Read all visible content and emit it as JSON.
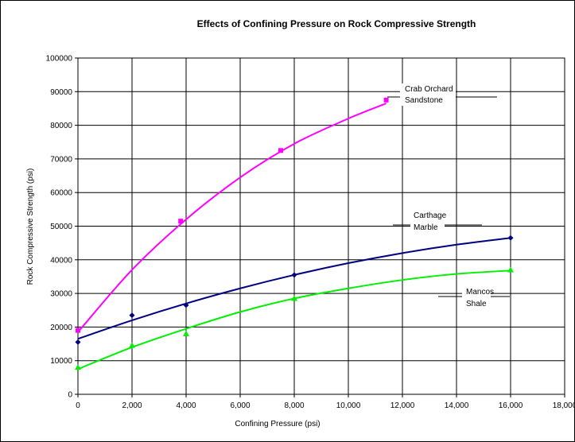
{
  "chart_data": {
    "type": "scatter",
    "title": "Effects of Confining Pressure on Rock Compressive Strength",
    "xlabel": "Confining Pressure (psi)",
    "ylabel": "Rock Compressive Strength (psi)",
    "xlim": [
      0,
      18000
    ],
    "ylim": [
      0,
      100000
    ],
    "x_ticks": [
      "0",
      "2,000",
      "4,000",
      "6,000",
      "8,000",
      "10,000",
      "12,000",
      "14,000",
      "16,000",
      "18,000"
    ],
    "y_ticks": [
      "0",
      "10000",
      "20000",
      "30000",
      "40000",
      "50000",
      "60000",
      "70000",
      "80000",
      "90000",
      "100000"
    ],
    "x_tick_values": [
      0,
      2000,
      4000,
      6000,
      8000,
      10000,
      12000,
      14000,
      16000,
      18000
    ],
    "y_tick_values": [
      0,
      10000,
      20000,
      30000,
      40000,
      50000,
      60000,
      70000,
      80000,
      90000,
      100000
    ],
    "grid": true,
    "legend": "none",
    "series": [
      {
        "label_lines": [
          "Crab Orchard",
          "Sandstone"
        ],
        "color": "#ff00ff",
        "marker": "square",
        "points": [
          [
            0,
            19000
          ],
          [
            3800,
            51500
          ],
          [
            7500,
            72500
          ],
          [
            11400,
            87500
          ]
        ],
        "trend": [
          [
            0,
            18500
          ],
          [
            2000,
            37000
          ],
          [
            4000,
            52000
          ],
          [
            6000,
            64500
          ],
          [
            8000,
            74500
          ],
          [
            10000,
            82000
          ],
          [
            11400,
            86500
          ]
        ]
      },
      {
        "label_lines": [
          "Carthage",
          "Marble"
        ],
        "color": "#000080",
        "marker": "diamond",
        "points": [
          [
            0,
            15500
          ],
          [
            2000,
            23500
          ],
          [
            4000,
            26500
          ],
          [
            8000,
            35500
          ],
          [
            16000,
            46500
          ]
        ],
        "trend": [
          [
            0,
            16500
          ],
          [
            2000,
            22000
          ],
          [
            4000,
            27000
          ],
          [
            6000,
            31500
          ],
          [
            8000,
            35500
          ],
          [
            10000,
            39000
          ],
          [
            12000,
            42000
          ],
          [
            14000,
            44500
          ],
          [
            16000,
            46500
          ]
        ]
      },
      {
        "label_lines": [
          "Mancos",
          "Shale"
        ],
        "color": "#00ee00",
        "marker": "triangle",
        "points": [
          [
            0,
            8000
          ],
          [
            2000,
            14500
          ],
          [
            4000,
            18000
          ],
          [
            8000,
            28500
          ],
          [
            16000,
            37000
          ]
        ],
        "trend": [
          [
            0,
            7500
          ],
          [
            2000,
            14000
          ],
          [
            4000,
            19500
          ],
          [
            6000,
            24500
          ],
          [
            8000,
            28500
          ],
          [
            10000,
            31500
          ],
          [
            12000,
            34000
          ],
          [
            14000,
            35800
          ],
          [
            16000,
            36800
          ]
        ]
      }
    ]
  }
}
